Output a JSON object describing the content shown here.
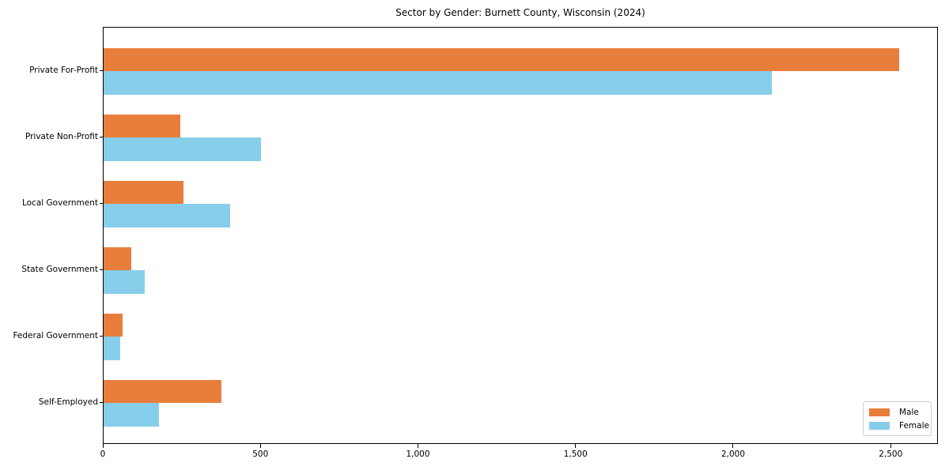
{
  "chart_data": {
    "type": "bar",
    "orientation": "horizontal",
    "title": "Sector by Gender: Burnett County, Wisconsin (2024)",
    "xlabel": "",
    "ylabel": "",
    "categories": [
      "Private For-Profit",
      "Private Non-Profit",
      "Local Government",
      "State Government",
      "Federal Government",
      "Self-Employed"
    ],
    "series": [
      {
        "name": "Male",
        "color": "#E87E3C",
        "values": [
          2525,
          243,
          253,
          88,
          61,
          373
        ]
      },
      {
        "name": "Female",
        "color": "#87CEEB",
        "values": [
          2120,
          500,
          401,
          130,
          53,
          176
        ]
      }
    ],
    "xlim": [
      0,
      2650
    ],
    "x_ticks": [
      0,
      500,
      1000,
      1500,
      2000,
      2500
    ],
    "x_tick_labels": [
      "0",
      "500",
      "1,000",
      "1,500",
      "2,000",
      "2,500"
    ],
    "grid": false,
    "legend": {
      "position": "lower right",
      "entries": [
        "Male",
        "Female"
      ]
    }
  }
}
